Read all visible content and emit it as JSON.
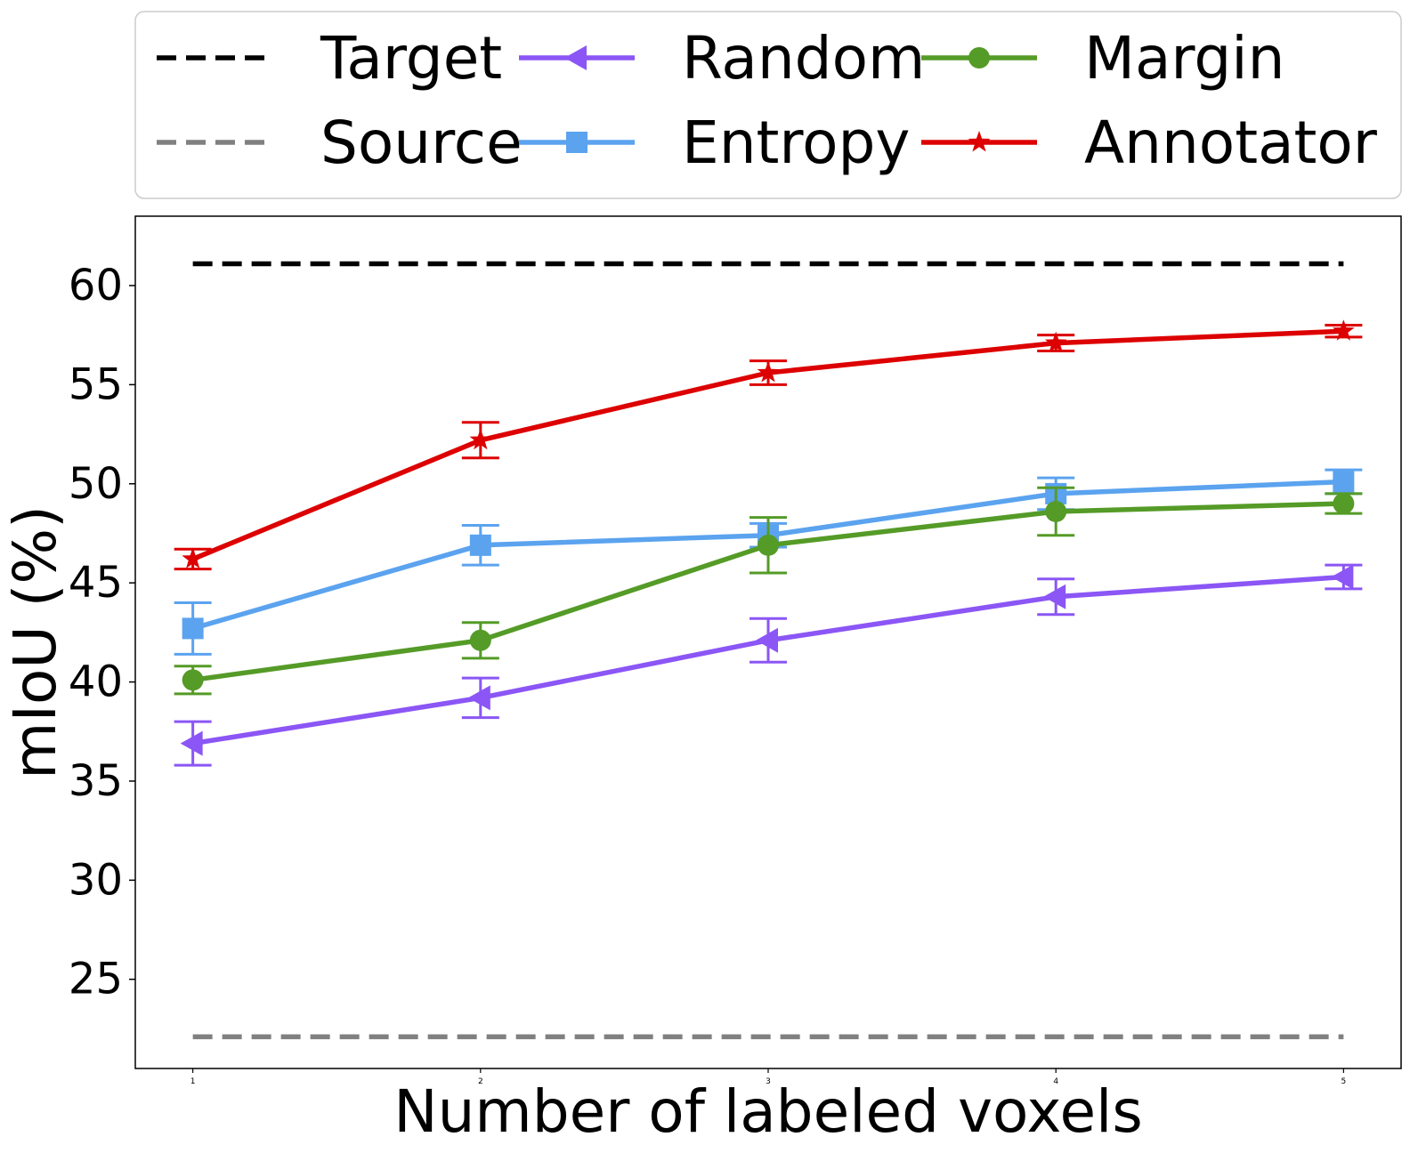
{
  "chart_data": {
    "type": "line",
    "title": "",
    "xlabel": "Number of labeled voxels",
    "ylabel": "mIoU (%)",
    "x": [
      1,
      2,
      3,
      4,
      5
    ],
    "xticks": [
      "1",
      "2",
      "3",
      "4",
      "5"
    ],
    "yticks": [
      "25",
      "30",
      "35",
      "40",
      "45",
      "50",
      "55",
      "60"
    ],
    "xlim": [
      0.8,
      5.2
    ],
    "ylim": [
      20.5,
      63.5
    ],
    "legend_position": "top",
    "reference_lines": [
      {
        "name": "Target",
        "value": 61.1,
        "color": "#000000",
        "style": "dashed"
      },
      {
        "name": "Source",
        "value": 22.1,
        "color": "#808080",
        "style": "dashed"
      }
    ],
    "series": [
      {
        "name": "Random",
        "color": "#8b56f5",
        "marker": "triangle-left",
        "values": [
          36.9,
          39.2,
          42.1,
          44.3,
          45.3
        ],
        "errors": [
          1.1,
          1.0,
          1.1,
          0.9,
          0.6
        ]
      },
      {
        "name": "Entropy",
        "color": "#5ba3ef",
        "marker": "square",
        "values": [
          42.7,
          46.9,
          47.4,
          49.5,
          50.1
        ],
        "errors": [
          1.3,
          1.0,
          0.6,
          0.8,
          0.6
        ]
      },
      {
        "name": "Margin",
        "color": "#559b27",
        "marker": "circle",
        "values": [
          40.1,
          42.1,
          46.9,
          48.6,
          49.0
        ],
        "errors": [
          0.7,
          0.9,
          1.4,
          1.2,
          0.5
        ]
      },
      {
        "name": "Annotator",
        "color": "#dd0000",
        "marker": "star",
        "values": [
          46.2,
          52.2,
          55.6,
          57.1,
          57.7
        ],
        "errors": [
          0.5,
          0.9,
          0.6,
          0.4,
          0.3
        ]
      }
    ]
  }
}
